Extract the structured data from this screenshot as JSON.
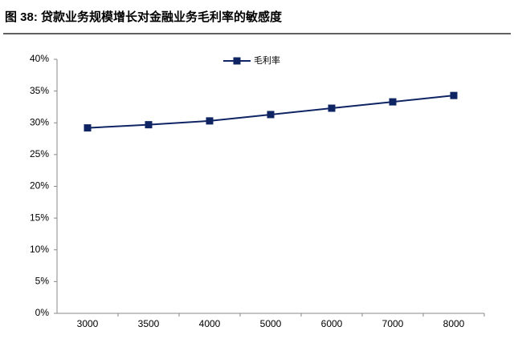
{
  "chart_data": {
    "type": "line",
    "title": "图 38:  贷款业务规模增长对金融业务毛利率的敏感度",
    "categories": [
      "3000",
      "3500",
      "4000",
      "5000",
      "6000",
      "7000",
      "8000"
    ],
    "series": [
      {
        "name": "毛利率",
        "color": "#0f2563",
        "values": [
          29.2,
          29.7,
          30.3,
          31.3,
          32.3,
          33.3,
          34.3
        ]
      }
    ],
    "ylim": [
      0,
      40
    ],
    "yticks": [
      {
        "value": 0,
        "label": "0%"
      },
      {
        "value": 5,
        "label": "5%"
      },
      {
        "value": 10,
        "label": "10%"
      },
      {
        "value": 15,
        "label": "15%"
      },
      {
        "value": 20,
        "label": "20%"
      },
      {
        "value": 25,
        "label": "25%"
      },
      {
        "value": 30,
        "label": "30%"
      },
      {
        "value": 35,
        "label": "35%"
      },
      {
        "value": 40,
        "label": "40%"
      }
    ],
    "grid": false,
    "legend": "top"
  }
}
